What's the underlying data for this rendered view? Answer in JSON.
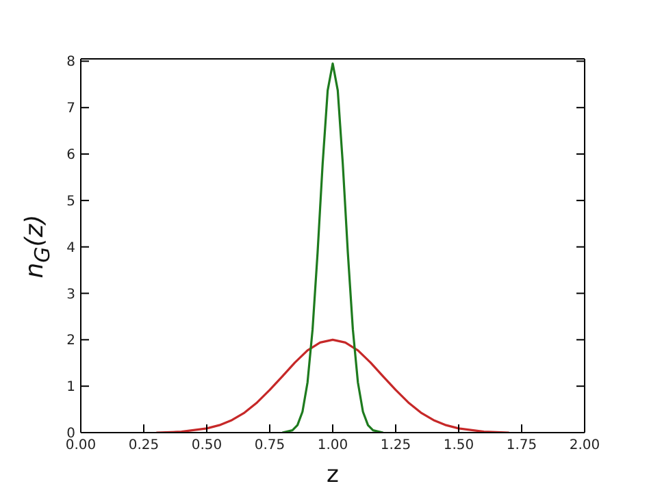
{
  "chart_data": {
    "type": "line",
    "xlabel": "z",
    "ylabel": "n$_{G}$(z)",
    "xlim": [
      0,
      2
    ],
    "ylim": [
      0,
      8.05
    ],
    "xticks": [
      {
        "value": 0,
        "label": "0.00"
      },
      {
        "value": 0.25,
        "label": "0.25"
      },
      {
        "value": 0.5,
        "label": "0.50"
      },
      {
        "value": 0.75,
        "label": "0.75"
      },
      {
        "value": 1,
        "label": "1.00"
      },
      {
        "value": 1.25,
        "label": "1.25"
      },
      {
        "value": 1.5,
        "label": "1.50"
      },
      {
        "value": 1.75,
        "label": "1.75"
      },
      {
        "value": 2,
        "label": "2.00"
      }
    ],
    "yticks": [
      0,
      1,
      2,
      3,
      4,
      5,
      6,
      7,
      8
    ],
    "marker": "none",
    "line_style": "solid",
    "series": [
      {
        "color": "#c62828",
        "x": [
          0.3,
          0.4,
          0.5,
          0.55,
          0.6,
          0.65,
          0.7,
          0.75,
          0.8,
          0.85,
          0.9,
          0.95,
          1,
          1.05,
          1.1,
          1.15,
          1.2,
          1.25,
          1.3,
          1.35,
          1.4,
          1.45,
          1.5,
          1.6,
          1.7
        ],
        "values": [
          0,
          0.02,
          0.09,
          0.16,
          0.27,
          0.43,
          0.65,
          0.92,
          1.21,
          1.51,
          1.77,
          1.94,
          2,
          1.94,
          1.77,
          1.51,
          1.21,
          0.92,
          0.65,
          0.43,
          0.27,
          0.16,
          0.09,
          0.02,
          0
        ]
      },
      {
        "color": "#1e7b1e",
        "x": [
          0.8,
          0.84,
          0.86,
          0.88,
          0.9,
          0.92,
          0.94,
          0.95,
          0.96,
          0.98,
          1,
          1.02,
          1.04,
          1.05,
          1.06,
          1.08,
          1.1,
          1.12,
          1.14,
          1.16,
          1.2
        ],
        "values": [
          0,
          0.05,
          0.16,
          0.45,
          1.08,
          2.22,
          3.88,
          4.84,
          5.79,
          7.37,
          7.95,
          7.37,
          5.79,
          4.84,
          3.88,
          2.22,
          1.08,
          0.45,
          0.16,
          0.05,
          0
        ]
      }
    ]
  }
}
